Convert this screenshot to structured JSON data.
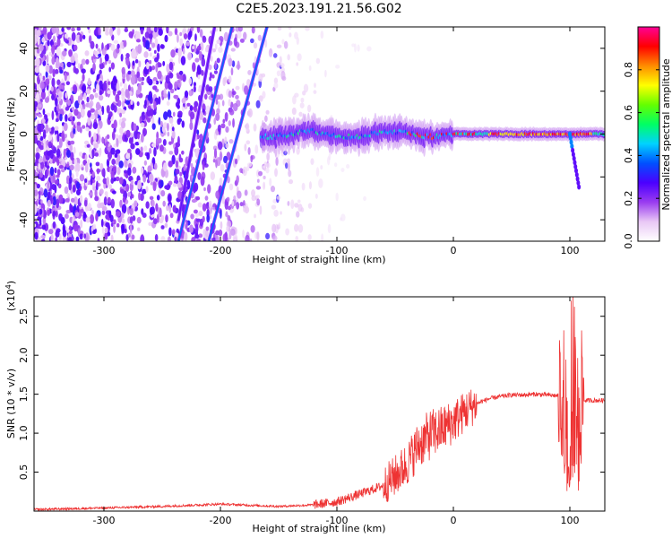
{
  "figure": {
    "title": "C2E5.2023.191.21.56.G02"
  },
  "chart_data": [
    {
      "type": "heatmap",
      "xlabel": "Height of straight line (km)",
      "ylabel": "Frequency (Hz)",
      "xlim": [
        -360,
        130
      ],
      "ylim": [
        -50,
        50
      ],
      "x_ticks": [
        -300,
        -200,
        -100,
        0,
        100
      ],
      "y_ticks": [
        -40,
        -20,
        0,
        20,
        40
      ],
      "colorbar": {
        "label": "Normalized spectral amplitude",
        "range": [
          0,
          1
        ],
        "ticks": [
          0.0,
          0.2,
          0.4,
          0.6,
          0.8
        ],
        "colormap": [
          "#ffffff",
          "#e9c8f5",
          "#9a3cf0",
          "#4b00ff",
          "#0050ff",
          "#00d2ff",
          "#00ff64",
          "#64ff00",
          "#ffff00",
          "#ff8c00",
          "#ff0000",
          "#ff0096"
        ]
      },
      "features": {
        "noise_region_x": [
          -360,
          -110
        ],
        "carrier_frequency": 0,
        "strong_segment_x": [
          30,
          120
        ],
        "diagonal_streaks": [
          {
            "x_start": -236,
            "y_start": -50,
            "x_end": -190,
            "y_end": 50
          },
          {
            "x_start": -210,
            "y_start": -50,
            "x_end": -160,
            "y_end": 50
          },
          {
            "x_start": -236,
            "y_start": -40,
            "x_end": -205,
            "y_end": 50
          }
        ]
      }
    },
    {
      "type": "line",
      "xlabel": "Height of straight line (km)",
      "ylabel": "SNR (10 * v/v)",
      "y_scale_note": "(x10",
      "y_scale_exponent": "4",
      "xlim": [
        -360,
        130
      ],
      "ylim": [
        0,
        2.75
      ],
      "x_ticks": [
        -300,
        -200,
        -100,
        0,
        100
      ],
      "y_ticks": [
        0.5,
        1.0,
        1.5,
        2.0,
        2.5
      ],
      "y_tick_labels": [
        "0.5",
        "1.0",
        "1.5",
        "2.0",
        "2.5"
      ],
      "color": "#ee3333",
      "series": [
        {
          "x": [
            -360,
            -300,
            -250,
            -200,
            -150,
            -120,
            -100,
            -80,
            -60,
            -50,
            -40,
            -30,
            -20,
            -10,
            0,
            10,
            20,
            30,
            40,
            50,
            60,
            70,
            80,
            90,
            95,
            100,
            105,
            110,
            120,
            130
          ],
          "y": [
            0.02,
            0.04,
            0.06,
            0.09,
            0.06,
            0.08,
            0.12,
            0.22,
            0.33,
            0.45,
            0.6,
            0.85,
            0.98,
            1.05,
            1.15,
            1.28,
            1.38,
            1.44,
            1.47,
            1.49,
            1.49,
            1.5,
            1.49,
            1.48,
            1.52,
            0.7,
            1.55,
            1.42,
            1.42,
            1.42
          ]
        }
      ]
    }
  ]
}
